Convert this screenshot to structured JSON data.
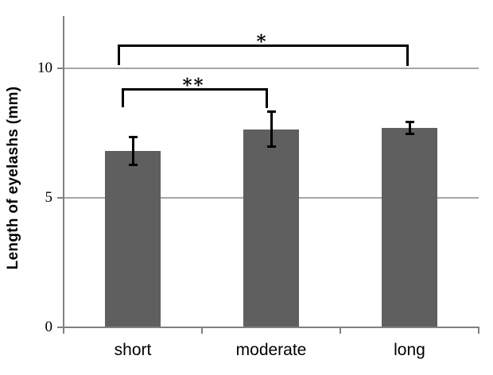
{
  "figure": {
    "background": "#ffffff",
    "bar_color": "#5f5f5f",
    "gridline_color": "#a6a6a6",
    "axis_color": "#808080",
    "annotation_color": "#000000",
    "text_color": "#000000"
  },
  "chart_data": {
    "type": "bar",
    "title": "",
    "xlabel": "",
    "ylabel": "Length of eyelashs (mm)",
    "categories": [
      "short",
      "moderate",
      "long"
    ],
    "values": [
      6.8,
      7.65,
      7.7
    ],
    "errors": [
      0.55,
      0.7,
      0.25
    ],
    "yticks": [
      0,
      5,
      10
    ],
    "ylim": [
      0,
      12
    ],
    "grid": "horizontal-major",
    "legend": "none",
    "significance": [
      {
        "label": "**",
        "pair": [
          "short",
          "moderate"
        ]
      },
      {
        "label": "*",
        "pair": [
          "short",
          "long"
        ]
      }
    ]
  }
}
